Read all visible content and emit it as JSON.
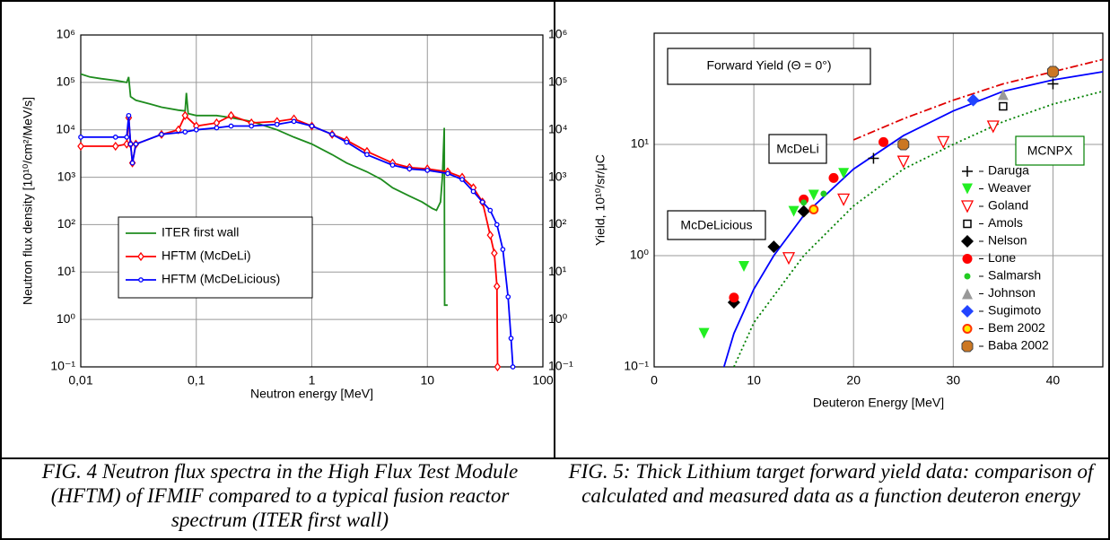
{
  "chart_data": [
    {
      "type": "line",
      "x_log": true,
      "y_log": true,
      "grid": true,
      "legend": "lower left",
      "xlabel": "Neutron energy [MeV]",
      "ylabel": "Neutron flux density [10¹⁰/cm²/MeV/s]",
      "caption": "FIG. 4 Neutron flux spectra in the High Flux Test Module (HFTM) of IFMIF compared to a typical fusion reactor spectrum (ITER first wall)",
      "xlim": [
        0.01,
        100
      ],
      "xticks": [
        {
          "value": 0.01,
          "label": "0,01"
        },
        {
          "value": 0.1,
          "label": "0,1"
        },
        1,
        10,
        100
      ],
      "ylim": [
        0.1,
        1000000
      ],
      "yticks": [
        {
          "value": 0.1,
          "label": "10⁻¹"
        },
        {
          "value": 1,
          "label": "10⁰"
        },
        {
          "value": 10,
          "label": "10¹"
        },
        {
          "value": 100,
          "label": "10²"
        },
        {
          "value": 1000,
          "label": "10³"
        },
        {
          "value": 10000,
          "label": "10⁴"
        },
        {
          "value": 100000,
          "label": "10⁵"
        },
        {
          "value": 1000000,
          "label": "10⁶"
        }
      ],
      "series": [
        {
          "name": "ITER first wall",
          "color": "#1e8c1e",
          "marker": "none",
          "x": [
            0.01,
            0.012,
            0.015,
            0.02,
            0.025,
            0.026,
            0.027,
            0.03,
            0.04,
            0.05,
            0.07,
            0.08,
            0.082,
            0.085,
            0.1,
            0.15,
            0.2,
            0.3,
            0.5,
            0.7,
            1,
            1.5,
            2,
            3,
            4,
            5,
            7,
            9,
            11,
            12,
            13,
            13.5,
            14,
            14.1,
            14.3,
            15
          ],
          "values": [
            150000,
            130000,
            120000,
            110000,
            100000,
            130000,
            50000,
            42000,
            35000,
            30000,
            26000,
            25000,
            60000,
            22000,
            20000,
            20000,
            18000,
            15000,
            10000,
            7000,
            5000,
            3000,
            2000,
            1300,
            900,
            600,
            400,
            300,
            220,
            200,
            300,
            1000,
            11000,
            2,
            2,
            2
          ]
        },
        {
          "name": "HFTM (McDeLi)",
          "color": "#ff0000",
          "marker": "open-diamond",
          "x": [
            0.01,
            0.02,
            0.025,
            0.026,
            0.027,
            0.028,
            0.03,
            0.05,
            0.07,
            0.08,
            0.1,
            0.15,
            0.2,
            0.3,
            0.5,
            0.7,
            1,
            1.5,
            2,
            3,
            5,
            7,
            10,
            15,
            20,
            25,
            30,
            35,
            38,
            40,
            40.5
          ],
          "values": [
            4500,
            4500,
            5000,
            18000,
            5000,
            2000,
            5000,
            8000,
            10000,
            20000,
            12000,
            14000,
            20000,
            14000,
            15000,
            17000,
            12000,
            8000,
            6000,
            3500,
            2000,
            1600,
            1500,
            1300,
            1000,
            600,
            300,
            60,
            25,
            5,
            0.1
          ]
        },
        {
          "name": "HFTM (McDeLicious)",
          "color": "#0000ff",
          "marker": "open-circle",
          "x": [
            0.01,
            0.02,
            0.025,
            0.026,
            0.027,
            0.028,
            0.03,
            0.05,
            0.08,
            0.1,
            0.15,
            0.2,
            0.3,
            0.5,
            0.7,
            1,
            1.5,
            2,
            3,
            5,
            7,
            10,
            15,
            20,
            25,
            30,
            35,
            40,
            45,
            50,
            53,
            55
          ],
          "values": [
            7000,
            7000,
            7000,
            20000,
            5000,
            2000,
            5000,
            8000,
            9000,
            10000,
            11000,
            12000,
            12000,
            13000,
            15000,
            12000,
            8000,
            5500,
            3000,
            1800,
            1500,
            1400,
            1200,
            900,
            500,
            300,
            200,
            100,
            30,
            3,
            0.4,
            0.1
          ]
        }
      ]
    },
    {
      "type": "scatter",
      "x_log": false,
      "y_log": true,
      "grid": true,
      "legend": "lower right",
      "xlabel": "Deuteron Energy [MeV]",
      "ylabel": "Yield,  10¹⁰/sr/μC",
      "annotation": "Forward Yield (Θ = 0°)",
      "caption": "FIG. 5: Thick Lithium target forward yield data: comparison of calculated and measured data as a function deuteron energy",
      "xlim": [
        0,
        45
      ],
      "xticks": [
        0,
        10,
        20,
        30,
        40
      ],
      "ylim": [
        0.1,
        100
      ],
      "yticks": [
        {
          "value": 0.1,
          "label": "10⁻¹"
        },
        {
          "value": 1,
          "label": "10⁰"
        },
        {
          "value": 10,
          "label": "10¹"
        }
      ],
      "curves": [
        {
          "name": "McDeLi",
          "color": "#e00000",
          "line_style": "dashdot",
          "x": [
            20,
            25,
            30,
            35,
            40,
            45
          ],
          "values": [
            11,
            17,
            25,
            35,
            45,
            58
          ]
        },
        {
          "name": "McDeLicious",
          "color": "#0000ff",
          "line_style": "solid",
          "x": [
            7,
            8,
            10,
            12,
            15,
            20,
            25,
            30,
            35,
            40,
            45
          ],
          "values": [
            0.1,
            0.2,
            0.5,
            1,
            2.3,
            6,
            12,
            20,
            30,
            38,
            45
          ]
        },
        {
          "name": "MCNPX",
          "color": "#008000",
          "line_style": "dotted",
          "x": [
            8,
            10,
            15,
            20,
            25,
            30,
            35,
            40,
            45
          ],
          "values": [
            0.1,
            0.25,
            1,
            2.8,
            6,
            10,
            16,
            23,
            30
          ]
        }
      ],
      "series": [
        {
          "name": "Daruga",
          "color": "#000000",
          "marker": "plus",
          "x": [
            22,
            40
          ],
          "values": [
            7.5,
            35
          ]
        },
        {
          "name": "Weaver",
          "color": "#22ee22",
          "marker": "tri-down",
          "x": [
            5,
            9,
            14,
            16,
            19
          ],
          "values": [
            0.2,
            0.8,
            2.5,
            3.5,
            5.5
          ]
        },
        {
          "name": "Goland",
          "color": "#ff0000",
          "marker": "open-tri-down",
          "x": [
            13.5,
            19,
            25,
            29,
            34
          ],
          "values": [
            0.95,
            3.2,
            7,
            10.5,
            14.5
          ]
        },
        {
          "name": "Amols",
          "color": "#000000",
          "marker": "open-square",
          "x": [
            35
          ],
          "values": [
            22
          ]
        },
        {
          "name": "Nelson",
          "color": "#000000",
          "marker": "diamond",
          "x": [
            8,
            12,
            15
          ],
          "values": [
            0.38,
            1.2,
            2.5
          ]
        },
        {
          "name": "Lone",
          "color": "#ff0000",
          "marker": "circle",
          "x": [
            8,
            15,
            18,
            23
          ],
          "values": [
            0.42,
            3.2,
            5,
            10.5
          ]
        },
        {
          "name": "Salmarsh",
          "color": "#22cc22",
          "marker": "dot",
          "x": [
            15,
            17
          ],
          "values": [
            3.0,
            3.6
          ]
        },
        {
          "name": "Johnson",
          "color": "#999999",
          "marker": "tri-up",
          "x": [
            35
          ],
          "values": [
            28
          ]
        },
        {
          "name": "Sugimoto",
          "color": "#2244ff",
          "marker": "diamond",
          "x": [
            32
          ],
          "values": [
            25
          ]
        },
        {
          "name": "Bem 2002",
          "color": "#ff3300",
          "marker": "ring",
          "x": [
            16,
            40
          ],
          "values": [
            2.6,
            45
          ]
        },
        {
          "name": "Baba 2002",
          "color": "#cc7722",
          "marker": "octagon",
          "x": [
            25,
            40
          ],
          "values": [
            10,
            45
          ]
        }
      ]
    }
  ]
}
